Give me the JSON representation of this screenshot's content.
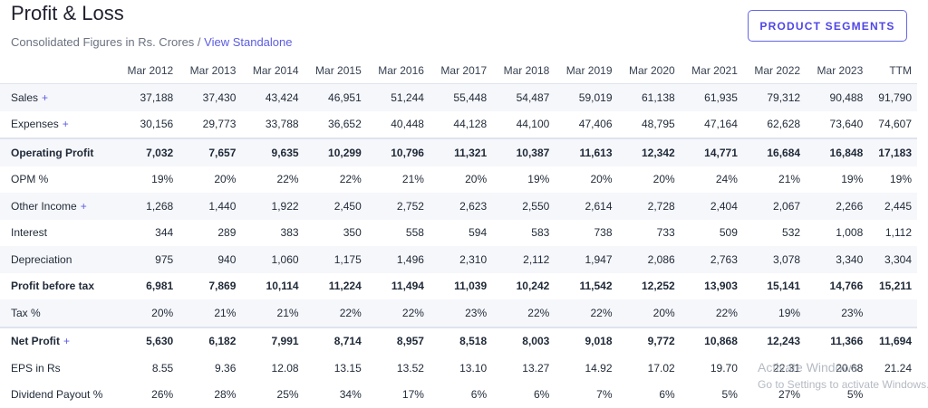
{
  "header": {
    "title": "Profit & Loss",
    "subtitle_prefix": "Consolidated Figures in Rs. Crores / ",
    "subtitle_link": "View Standalone",
    "segments_button": "PRODUCT SEGMENTS"
  },
  "table": {
    "columns": [
      "Mar 2012",
      "Mar 2013",
      "Mar 2014",
      "Mar 2015",
      "Mar 2016",
      "Mar 2017",
      "Mar 2018",
      "Mar 2019",
      "Mar 2020",
      "Mar 2021",
      "Mar 2022",
      "Mar 2023",
      "TTM"
    ],
    "rows": [
      {
        "label": "Sales",
        "expandable": true,
        "bold": false,
        "stripe": true,
        "sep": false,
        "values": [
          "37,188",
          "37,430",
          "43,424",
          "46,951",
          "51,244",
          "55,448",
          "54,487",
          "59,019",
          "61,138",
          "61,935",
          "79,312",
          "90,488",
          "91,790"
        ]
      },
      {
        "label": "Expenses",
        "expandable": true,
        "bold": false,
        "stripe": false,
        "sep": false,
        "values": [
          "30,156",
          "29,773",
          "33,788",
          "36,652",
          "40,448",
          "44,128",
          "44,100",
          "47,406",
          "48,795",
          "47,164",
          "62,628",
          "73,640",
          "74,607"
        ]
      },
      {
        "label": "Operating Profit",
        "expandable": false,
        "bold": true,
        "stripe": true,
        "sep": true,
        "values": [
          "7,032",
          "7,657",
          "9,635",
          "10,299",
          "10,796",
          "11,321",
          "10,387",
          "11,613",
          "12,342",
          "14,771",
          "16,684",
          "16,848",
          "17,183"
        ]
      },
      {
        "label": "OPM %",
        "expandable": false,
        "bold": false,
        "stripe": false,
        "sep": false,
        "values": [
          "19%",
          "20%",
          "22%",
          "22%",
          "21%",
          "20%",
          "19%",
          "20%",
          "20%",
          "24%",
          "21%",
          "19%",
          "19%"
        ]
      },
      {
        "label": "Other Income",
        "expandable": true,
        "bold": false,
        "stripe": true,
        "sep": false,
        "values": [
          "1,268",
          "1,440",
          "1,922",
          "2,450",
          "2,752",
          "2,623",
          "2,550",
          "2,614",
          "2,728",
          "2,404",
          "2,067",
          "2,266",
          "2,445"
        ]
      },
      {
        "label": "Interest",
        "expandable": false,
        "bold": false,
        "stripe": false,
        "sep": false,
        "values": [
          "344",
          "289",
          "383",
          "350",
          "558",
          "594",
          "583",
          "738",
          "733",
          "509",
          "532",
          "1,008",
          "1,112"
        ]
      },
      {
        "label": "Depreciation",
        "expandable": false,
        "bold": false,
        "stripe": true,
        "sep": false,
        "values": [
          "975",
          "940",
          "1,060",
          "1,175",
          "1,496",
          "2,310",
          "2,112",
          "1,947",
          "2,086",
          "2,763",
          "3,078",
          "3,340",
          "3,304"
        ]
      },
      {
        "label": "Profit before tax",
        "expandable": false,
        "bold": true,
        "stripe": false,
        "sep": false,
        "values": [
          "6,981",
          "7,869",
          "10,114",
          "11,224",
          "11,494",
          "11,039",
          "10,242",
          "11,542",
          "12,252",
          "13,903",
          "15,141",
          "14,766",
          "15,211"
        ]
      },
      {
        "label": "Tax %",
        "expandable": false,
        "bold": false,
        "stripe": true,
        "sep": false,
        "values": [
          "20%",
          "21%",
          "21%",
          "22%",
          "22%",
          "23%",
          "22%",
          "22%",
          "20%",
          "22%",
          "19%",
          "23%",
          ""
        ]
      },
      {
        "label": "Net Profit",
        "expandable": true,
        "bold": true,
        "stripe": false,
        "sep": true,
        "values": [
          "5,630",
          "6,182",
          "7,991",
          "8,714",
          "8,957",
          "8,518",
          "8,003",
          "9,018",
          "9,772",
          "10,868",
          "12,243",
          "11,366",
          "11,694"
        ]
      },
      {
        "label": "EPS in Rs",
        "expandable": false,
        "bold": false,
        "stripe": false,
        "sep": false,
        "values": [
          "8.55",
          "9.36",
          "12.08",
          "13.15",
          "13.52",
          "13.10",
          "13.27",
          "14.92",
          "17.02",
          "19.70",
          "22.31",
          "20.68",
          "21.24"
        ]
      },
      {
        "label": "Dividend Payout %",
        "expandable": false,
        "bold": false,
        "stripe": false,
        "sep": false,
        "values": [
          "26%",
          "28%",
          "25%",
          "34%",
          "17%",
          "6%",
          "6%",
          "7%",
          "6%",
          "5%",
          "27%",
          "5%",
          ""
        ]
      }
    ]
  },
  "watermark": {
    "line1": "Activate Windows",
    "line2": "Go to Settings to activate Windows."
  }
}
